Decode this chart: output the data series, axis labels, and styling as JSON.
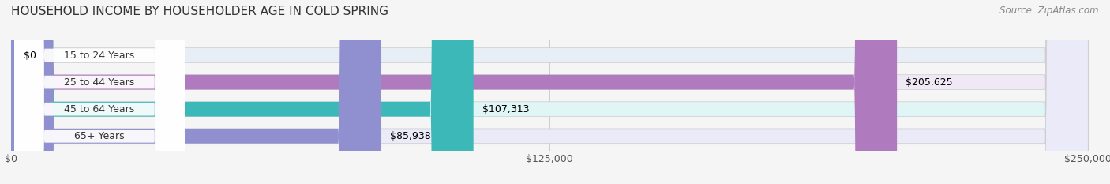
{
  "title": "HOUSEHOLD INCOME BY HOUSEHOLDER AGE IN COLD SPRING",
  "source": "Source: ZipAtlas.com",
  "categories": [
    "15 to 24 Years",
    "25 to 44 Years",
    "45 to 64 Years",
    "65+ Years"
  ],
  "values": [
    0,
    205625,
    107313,
    85938
  ],
  "labels": [
    "$0",
    "$205,625",
    "$107,313",
    "$85,938"
  ],
  "bar_colors": [
    "#a8c8e8",
    "#b07abf",
    "#3db8b8",
    "#9090d0"
  ],
  "bg_colors": [
    "#e8eef5",
    "#f0e8f5",
    "#e0f5f5",
    "#eaeaf8"
  ],
  "xlim": [
    0,
    250000
  ],
  "xtick_labels": [
    "$0",
    "$125,000",
    "$250,000"
  ],
  "title_fontsize": 11,
  "source_fontsize": 8.5,
  "label_fontsize": 9,
  "tick_fontsize": 9,
  "bar_height": 0.55,
  "background_color": "#f5f5f5"
}
